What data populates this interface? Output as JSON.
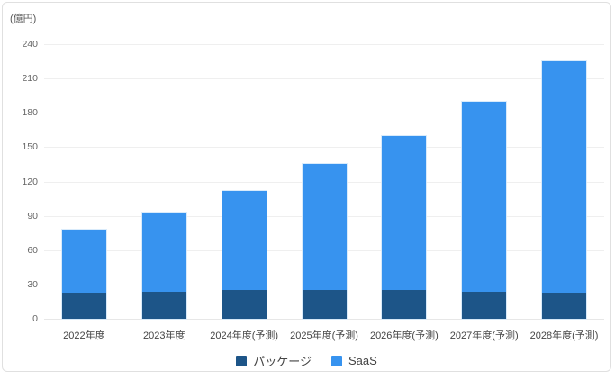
{
  "chart_data": {
    "type": "bar",
    "stacked": true,
    "title": "",
    "unit_label": "(億円)",
    "xlabel": "",
    "ylabel": "(億円)",
    "categories": [
      "2022年度",
      "2023年度",
      "2024年度(予測)",
      "2025年度(予測)",
      "2026年度(予測)",
      "2027年度(予測)",
      "2028年度(予測)"
    ],
    "series": [
      {
        "name": "パッケージ",
        "color": "#1d5588",
        "values": [
          23,
          24,
          25,
          25,
          25,
          24,
          23
        ]
      },
      {
        "name": "SaaS",
        "color": "#3793ef",
        "values": [
          55,
          69,
          87,
          110,
          135,
          166,
          202
        ]
      }
    ],
    "stack_totals": [
      78,
      93,
      112,
      135,
      160,
      190,
      225
    ],
    "ylim": [
      0,
      240
    ],
    "yticks": [
      0,
      30,
      60,
      90,
      120,
      150,
      180,
      210,
      240
    ],
    "grid": true,
    "legend_position": "bottom"
  },
  "frame": {
    "background": "#ffffff",
    "border_color": "#e0e0e0",
    "gridline_color": "#efefef"
  }
}
